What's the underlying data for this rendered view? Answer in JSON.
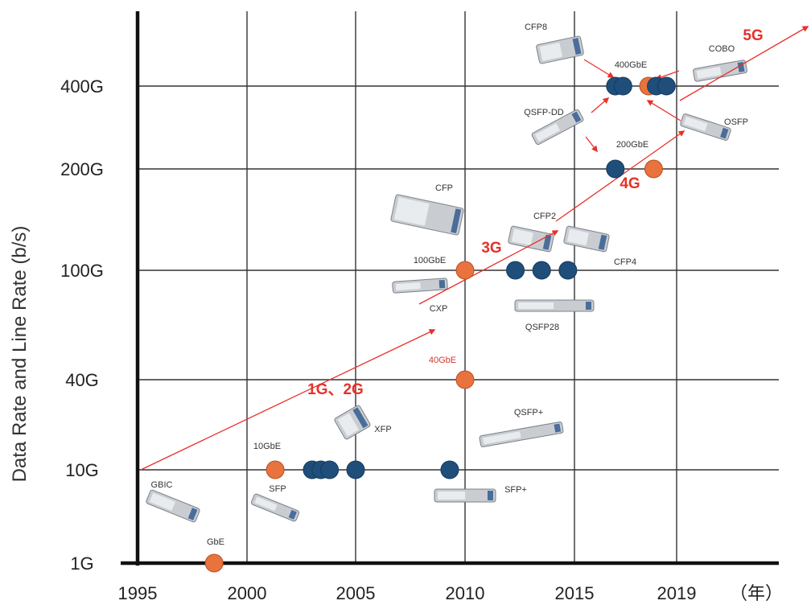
{
  "chart_data": {
    "type": "scatter",
    "ylabel": "Data Rate and Line Rate (b/s)",
    "x_ticks": [
      "1995",
      "2000",
      "2005",
      "2010",
      "2015",
      "2019"
    ],
    "x_unit": "（年）",
    "y_ticks": [
      "1G",
      "10G",
      "40G",
      "100G",
      "200G",
      "400G"
    ],
    "series": [
      {
        "name": "",
        "color": "#e8733f",
        "points": [
          {
            "year": 1998.5,
            "rate": "1G",
            "label": "GbE"
          },
          {
            "year": 2001.3,
            "rate": "10G",
            "label": "10GbE"
          },
          {
            "year": 2010.0,
            "rate": "40G",
            "label": "40GbE"
          },
          {
            "year": 2010.0,
            "rate": "100G",
            "label": "100GbE"
          },
          {
            "year": 2018.1,
            "rate": "200G",
            "label": "200GbE"
          },
          {
            "year": 2017.9,
            "rate": "400G",
            "label": "400GbE"
          }
        ]
      },
      {
        "name": "",
        "color": "#1f4e7a",
        "points": [
          {
            "year": 2003.0,
            "rate": "10G"
          },
          {
            "year": 2003.4,
            "rate": "10G"
          },
          {
            "year": 2003.8,
            "rate": "10G"
          },
          {
            "year": 2005.0,
            "rate": "10G"
          },
          {
            "year": 2009.3,
            "rate": "10G"
          },
          {
            "year": 2012.3,
            "rate": "100G"
          },
          {
            "year": 2013.5,
            "rate": "100G"
          },
          {
            "year": 2014.7,
            "rate": "100G"
          },
          {
            "year": 2016.6,
            "rate": "200G"
          },
          {
            "year": 2016.6,
            "rate": "400G"
          },
          {
            "year": 2016.9,
            "rate": "400G"
          },
          {
            "year": 2018.2,
            "rate": "400G"
          },
          {
            "year": 2018.6,
            "rate": "400G"
          }
        ]
      }
    ],
    "generation_labels": [
      "1G、2G",
      "3G",
      "4G",
      "5G"
    ],
    "module_labels": [
      "CFP8",
      "400GbE",
      "COBO",
      "QSFP-DD",
      "OSFP",
      "200GbE",
      "CFP",
      "CFP2",
      "100GbE",
      "CFP4",
      "CXP",
      "QSFP28",
      "40GbE",
      "XFP",
      "QSFP+",
      "10GbE",
      "GBIC",
      "SFP",
      "SFP+",
      "GbE"
    ],
    "arrow_color": "#e8302a",
    "grid": true
  }
}
